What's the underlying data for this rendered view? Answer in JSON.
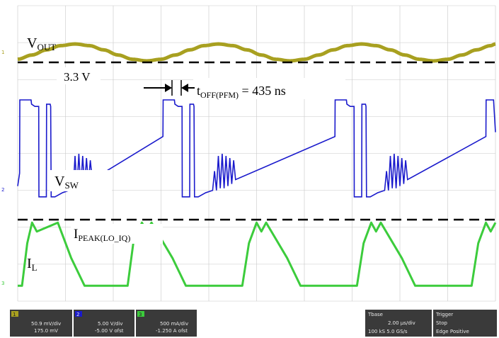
{
  "chart_data": {
    "type": "line",
    "title": "",
    "xlabel": "",
    "ylabel": "",
    "time_unit": "ns",
    "period_ns": 1800,
    "x_range_ns": [
      0,
      5000
    ],
    "grid": true,
    "series": [
      {
        "name": "V_OUT",
        "color": "#a8a020",
        "y_range": [
          -1,
          1
        ],
        "x": [
          0,
          150,
          300,
          450,
          600,
          750,
          900,
          1050,
          1200,
          1350,
          1500,
          1650,
          1800,
          1950,
          2100,
          2250,
          2400,
          2550,
          2700,
          2850,
          3000,
          3150,
          3300,
          3450,
          3600,
          3750,
          3900,
          4050,
          4200,
          4350,
          4500,
          4650,
          4800,
          4950,
          5000
        ],
        "values": [
          0.8,
          0.3,
          -0.3,
          -0.8,
          -1,
          -0.8,
          -0.3,
          0.3,
          0.8,
          1,
          0.8,
          0.3,
          -0.3,
          -0.8,
          -1,
          -0.8,
          -0.3,
          0.3,
          0.8,
          1,
          0.8,
          0.3,
          -0.3,
          -0.8,
          -1,
          -0.8,
          -0.3,
          0.3,
          0.8,
          1,
          0.8,
          0.3,
          -0.3,
          -0.8,
          -1
        ]
      },
      {
        "name": "V_SW",
        "color": "#1a1acc",
        "y_range": [
          0,
          5
        ],
        "x": [
          0,
          20,
          22,
          100,
          102,
          140,
          145,
          180,
          220,
          222,
          300,
          302,
          340,
          345,
          350,
          390,
          470,
          472,
          540,
          560,
          580,
          600,
          620,
          640,
          660,
          680,
          700,
          720,
          740,
          760,
          780,
          1520,
          1522,
          1600,
          1602,
          1640,
          1645,
          1680,
          1720,
          1722,
          1800,
          1802,
          1840,
          1845,
          1850,
          1890,
          1970,
          1972,
          2040,
          2060,
          2080,
          2100,
          2120,
          2140,
          2160,
          2180,
          2200,
          2220,
          2240,
          2260,
          2280,
          3320,
          3322,
          3400,
          3402,
          3440,
          3445,
          3480,
          3520,
          3522,
          3600,
          3602,
          3640,
          3645,
          3650,
          3690,
          3770,
          3772,
          3840,
          3860,
          3880,
          3900,
          3920,
          3940,
          3960,
          3980,
          4000,
          4020,
          4040,
          4060,
          4080,
          4900,
          4902,
          4980,
          5000
        ],
        "values": [
          0.9,
          1.5,
          4.9,
          4.9,
          4.9,
          4.9,
          4.7,
          4.6,
          4.6,
          0.4,
          0.4,
          4.7,
          4.7,
          4.6,
          0.4,
          0.4,
          0.6,
          0.6,
          0.7,
          1.6,
          0.7,
          2.3,
          0.8,
          2.4,
          0.8,
          2.3,
          0.9,
          2.2,
          1,
          2.1,
          1.2,
          3.2,
          4.9,
          4.9,
          4.9,
          4.9,
          4.7,
          4.6,
          4.6,
          0.4,
          0.4,
          4.7,
          4.7,
          4.6,
          0.4,
          0.4,
          0.6,
          0.6,
          0.7,
          1.6,
          0.7,
          2.3,
          0.8,
          2.4,
          0.8,
          2.3,
          0.9,
          2.2,
          1,
          2.1,
          1.2,
          3.2,
          4.9,
          4.9,
          4.9,
          4.9,
          4.7,
          4.6,
          4.6,
          0.4,
          0.4,
          4.7,
          4.7,
          4.6,
          0.4,
          0.4,
          0.6,
          0.6,
          0.7,
          1.6,
          0.7,
          2.3,
          0.8,
          2.4,
          0.8,
          2.3,
          0.9,
          2.2,
          1,
          2.1,
          1.2,
          3.2,
          4.9,
          4.9,
          3.4
        ]
      },
      {
        "name": "I_L",
        "color": "#3ccc3c",
        "y_range": [
          0,
          1.2
        ],
        "x": [
          0,
          45,
          100,
          150,
          200,
          420,
          560,
          700,
          1150,
          1210,
          1300,
          1350,
          1400,
          1620,
          1760,
          1900,
          2350,
          2420,
          2500,
          2550,
          2600,
          2820,
          2960,
          3100,
          3550,
          3620,
          3700,
          3750,
          3800,
          4020,
          4160,
          4300,
          4750,
          4820,
          4900,
          4950,
          5000
        ],
        "values": [
          0.08,
          0.08,
          0.8,
          1.15,
          1.0,
          1.15,
          0.55,
          0.08,
          0.08,
          0.8,
          1.15,
          1.0,
          1.15,
          0.55,
          0.08,
          0.08,
          0.08,
          0.8,
          1.15,
          1.0,
          1.15,
          0.55,
          0.08,
          0.08,
          0.08,
          0.8,
          1.15,
          1.0,
          1.15,
          0.55,
          0.08,
          0.08,
          0.08,
          0.8,
          1.15,
          1.0,
          1.15
        ]
      }
    ],
    "reference_lines": [
      {
        "name": "vout-reference",
        "label": "3.3 V"
      },
      {
        "name": "ipeak-reference",
        "label": "I_PEAK(LO_IQ)"
      }
    ],
    "annotations": [
      {
        "name": "toff-annotation",
        "text": "t_OFF(PFM) = 435 ns",
        "value_ns": 435
      }
    ],
    "labels": {
      "vout": {
        "main": "V",
        "sub": "OUT"
      },
      "vref": "3.3 V",
      "vsw": {
        "main": "V",
        "sub": "SW"
      },
      "ipeak": {
        "main": "I",
        "sub": "PEAK(LO_IQ)"
      },
      "il": {
        "main": "I",
        "sub": "L"
      },
      "toff": {
        "main": "t",
        "sub": "OFF(PFM)",
        "rest": " = 435 ns"
      }
    }
  },
  "status_bar": {
    "ch1": {
      "tag": "1",
      "line1": "50.9 mV/div",
      "line2": "175.0 mV"
    },
    "ch2": {
      "tag": "2",
      "line1": "5.00 V/div",
      "line2": "-5.00 V ofst"
    },
    "ch3": {
      "tag": "3",
      "line1": "500 mA/div",
      "line2": "-1.250 A ofst"
    },
    "timebase": {
      "line1": "Tbase",
      "line2": "2.00 µs/div",
      "line3": "100 kS  5.0 GS/s"
    },
    "trigger": {
      "line1": "Trigger",
      "line2": "Stop",
      "line3": "Edge  Positive"
    }
  },
  "colors": {
    "vout": "#a8a020",
    "vsw": "#1a1acc",
    "il": "#3ccc3c",
    "grid": "#c8c8c8",
    "status_bg": "#3a3a3a"
  }
}
